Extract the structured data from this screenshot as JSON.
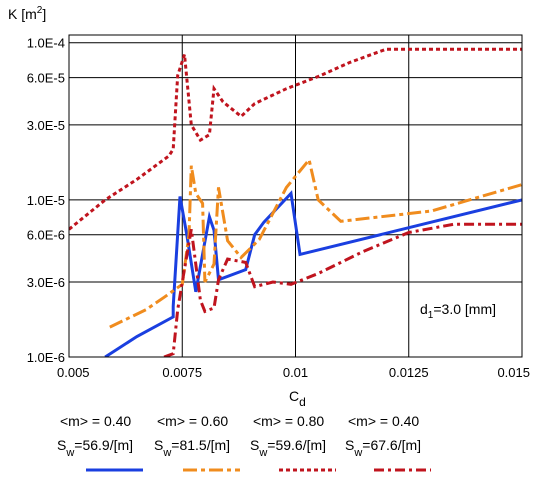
{
  "chart_data": {
    "type": "line",
    "ylabel_base": "K [m",
    "ylabel_sup": "2",
    "ylabel_end": "]",
    "xlabel_base": "C",
    "xlabel_sub": "d",
    "annotation_base": "d",
    "annotation_sub": "1",
    "annotation_rest": "=3.0 [mm]",
    "xlim": [
      0.005,
      0.015
    ],
    "ylim": [
      1e-06,
      0.000112
    ],
    "yscale": "log",
    "grid": true,
    "x_ticks": [
      {
        "v": 0.005,
        "label": "0.005"
      },
      {
        "v": 0.0075,
        "label": "0.0075"
      },
      {
        "v": 0.01,
        "label": "0.01"
      },
      {
        "v": 0.0125,
        "label": "0.0125"
      },
      {
        "v": 0.015,
        "label": "0.015"
      }
    ],
    "y_ticks": [
      {
        "v": 0.0001,
        "label": "1.0E-4"
      },
      {
        "v": 6e-05,
        "label": "6.0E-5"
      },
      {
        "v": 3e-05,
        "label": "3.0E-5"
      },
      {
        "v": 1e-05,
        "label": "1.0E-5"
      },
      {
        "v": 6e-06,
        "label": "6.0E-6"
      },
      {
        "v": 3e-06,
        "label": "3.0E-6"
      },
      {
        "v": 1e-06,
        "label": "1.0E-6"
      }
    ],
    "series": [
      {
        "m_label": "<m> = 0.40",
        "s_base": "S",
        "s_sub": "w",
        "s_rest": "=56.9/[m]",
        "color": "#1a3fe0",
        "dash": "",
        "width": 3,
        "points": [
          [
            0.0058,
            1e-06
          ],
          [
            0.0065,
            1.35e-06
          ],
          [
            0.0073,
            1.8e-06
          ],
          [
            0.0073,
            2.1e-06
          ],
          [
            0.00745,
            1.05e-05
          ],
          [
            0.0076,
            6e-06
          ],
          [
            0.0078,
            2.6e-06
          ],
          [
            0.0081,
            7.8e-06
          ],
          [
            0.0082,
            6.4e-06
          ],
          [
            0.0083,
            3.1e-06
          ],
          [
            0.0089,
            3.6e-06
          ],
          [
            0.0091,
            6e-06
          ],
          [
            0.0093,
            7.2e-06
          ],
          [
            0.0099,
            1.1e-05
          ],
          [
            0.0101,
            4.5e-06
          ],
          [
            0.015,
            1e-05
          ]
        ]
      },
      {
        "m_label": "<m> = 0.60",
        "s_base": "S",
        "s_sub": "w",
        "s_rest": "=81.5/[m]",
        "color": "#f08c1e",
        "dash": "14,4,4,4",
        "width": 3,
        "points": [
          [
            0.0059,
            1.55e-06
          ],
          [
            0.0067,
            2e-06
          ],
          [
            0.0071,
            2.4e-06
          ],
          [
            0.0075,
            2.9e-06
          ],
          [
            0.00765,
            6e-06
          ],
          [
            0.0077,
            1.65e-05
          ],
          [
            0.0078,
            1.1e-05
          ],
          [
            0.00795,
            9.5e-06
          ],
          [
            0.008,
            3e-06
          ],
          [
            0.0082,
            3.9e-06
          ],
          [
            0.0083,
            1.2e-05
          ],
          [
            0.0085,
            5.5e-06
          ],
          [
            0.0088,
            4.3e-06
          ],
          [
            0.0092,
            5.6e-06
          ],
          [
            0.0098,
            1.2e-05
          ],
          [
            0.0103,
            1.8e-05
          ],
          [
            0.0105,
            1e-05
          ],
          [
            0.011,
            7.3e-06
          ],
          [
            0.013,
            8.5e-06
          ],
          [
            0.015,
            1.25e-05
          ]
        ]
      },
      {
        "m_label": "<m> = 0.80",
        "s_base": "S",
        "s_sub": "w",
        "s_rest": "=59.6/[m]",
        "color": "#c0141e",
        "dash": "4,3",
        "width": 3,
        "points": [
          [
            0.005,
            6.5e-06
          ],
          [
            0.0058,
            1e-05
          ],
          [
            0.0065,
            1.35e-05
          ],
          [
            0.0072,
            1.9e-05
          ],
          [
            0.0073,
            2.1e-05
          ],
          [
            0.0074,
            6.2e-05
          ],
          [
            0.00755,
            8.4e-05
          ],
          [
            0.0077,
            3e-05
          ],
          [
            0.0079,
            2.4e-05
          ],
          [
            0.0081,
            2.6e-05
          ],
          [
            0.0082,
            5.1e-05
          ],
          [
            0.0084,
            4.2e-05
          ],
          [
            0.0088,
            3.4e-05
          ],
          [
            0.0091,
            4.1e-05
          ],
          [
            0.0098,
            5.1e-05
          ],
          [
            0.0105,
            6.1e-05
          ],
          [
            0.0112,
            7.5e-05
          ],
          [
            0.012,
            9.1e-05
          ],
          [
            0.015,
            9.1e-05
          ]
        ]
      },
      {
        "m_label": "<m> = 0.40",
        "s_base": "S",
        "s_sub": "w",
        "s_rest": "=67.6/[m]",
        "color": "#c0141e",
        "dash": "10,4,3,4",
        "width": 3,
        "points": [
          [
            0.0071,
            1e-06
          ],
          [
            0.0073,
            1.05e-06
          ],
          [
            0.0074,
            2e-06
          ],
          [
            0.0075,
            3e-06
          ],
          [
            0.0077,
            6.5e-06
          ],
          [
            0.0079,
            2.3e-06
          ],
          [
            0.008,
            1.95e-06
          ],
          [
            0.0082,
            2.05e-06
          ],
          [
            0.0083,
            3.1e-06
          ],
          [
            0.0085,
            4.2e-06
          ],
          [
            0.0089,
            4e-06
          ],
          [
            0.0091,
            2.8e-06
          ],
          [
            0.0095,
            3e-06
          ],
          [
            0.0099,
            2.9e-06
          ],
          [
            0.0105,
            3.4e-06
          ],
          [
            0.0115,
            4.7e-06
          ],
          [
            0.0125,
            6.2e-06
          ],
          [
            0.0135,
            7e-06
          ],
          [
            0.015,
            7e-06
          ]
        ]
      }
    ]
  }
}
